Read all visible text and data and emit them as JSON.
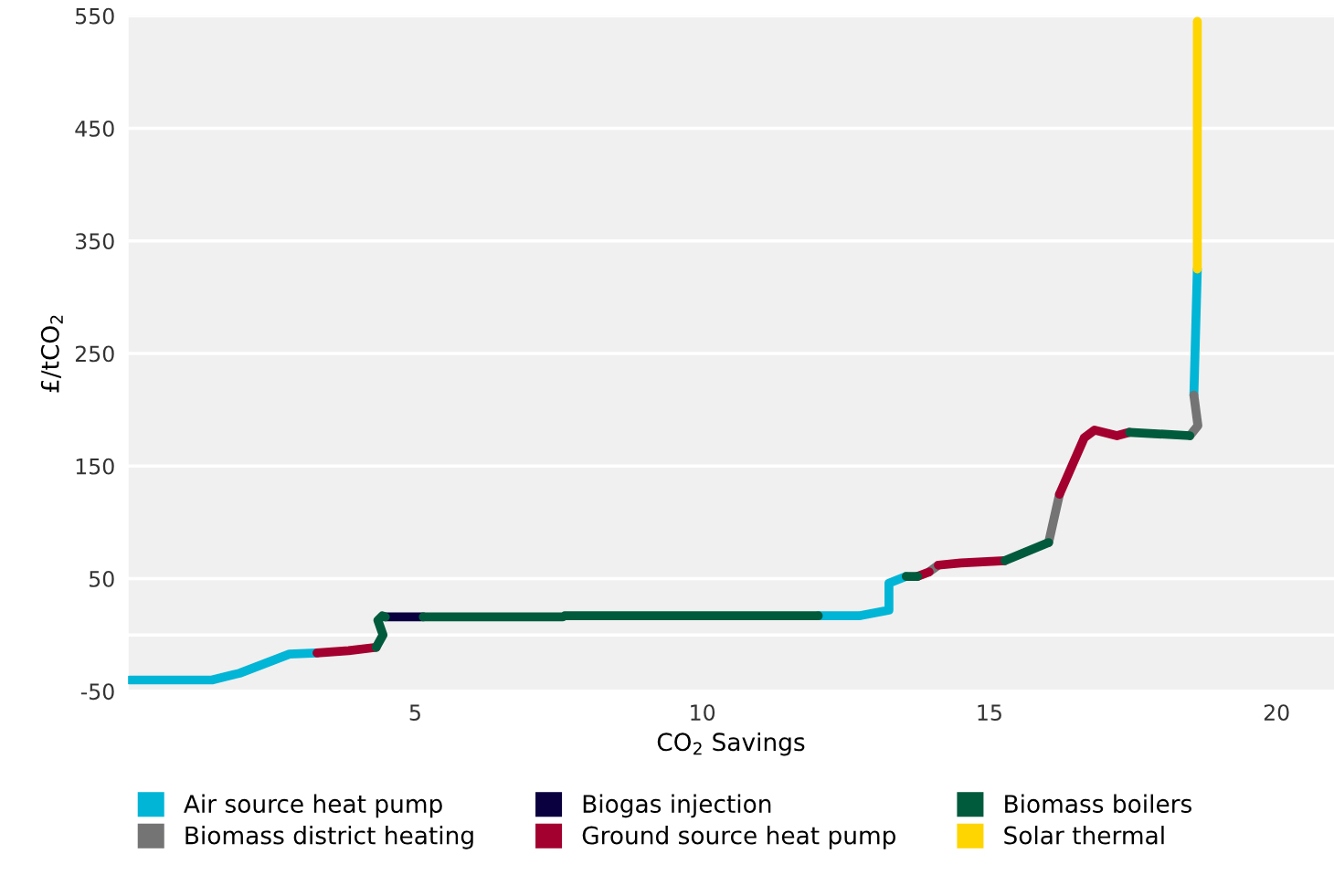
{
  "chart_data": {
    "type": "line",
    "xlabel": "CO$_{2}$ Savings",
    "ylabel": "£/tCO$_{2}$",
    "xlim": [
      0,
      21
    ],
    "xticks": [
      5,
      10,
      15,
      20
    ],
    "ylim": [
      -50,
      550
    ],
    "yticks": [
      -50,
      {
        "value": 0,
        "label": null
      },
      50,
      150,
      250,
      350,
      450,
      550
    ],
    "grid": "y",
    "legend": "bottom",
    "marker": "none",
    "line_style": "solid",
    "series": [
      {
        "name": "Air source heat pump",
        "color": "#00b5d6",
        "x": [
          0.03,
          0.75,
          1.46,
          1.94,
          2.81,
          3.29,
          null,
          12.02,
          12.73,
          13.25,
          13.25,
          13.55,
          null,
          18.56,
          18.62
        ],
        "values": [
          -40,
          -40,
          -40,
          -34,
          -17,
          -16,
          null,
          17,
          17,
          22,
          46,
          52,
          null,
          213,
          325
        ]
      },
      {
        "name": "Biomass district heating",
        "color": "#747474",
        "x": [
          13.95,
          14.11,
          null,
          16.03,
          16.22,
          null,
          18.49,
          18.63,
          18.56
        ],
        "values": [
          56,
          62,
          null,
          82,
          125,
          null,
          177,
          186,
          213
        ]
      },
      {
        "name": "Biogas injection",
        "color": "#0a0040",
        "x": [
          4.48,
          5.14
        ],
        "values": [
          16,
          16
        ]
      },
      {
        "name": "Ground source heat pump",
        "color": "#a4002f",
        "x": [
          3.29,
          3.84,
          4.32,
          null,
          13.75,
          13.95,
          null,
          14.11,
          14.5,
          15.27,
          null,
          16.22,
          16.65,
          16.83,
          17.22,
          17.44
        ],
        "values": [
          -16,
          -14,
          -11,
          null,
          52,
          56,
          null,
          62,
          64,
          66,
          null,
          125,
          175,
          182,
          177,
          180
        ]
      },
      {
        "name": "Biomass boilers",
        "color": "#005a3c",
        "x": [
          4.32,
          4.44,
          4.35,
          4.43,
          4.48,
          null,
          5.14,
          7.57,
          7.6,
          12.02,
          null,
          13.55,
          13.75,
          null,
          15.27,
          16.03,
          null,
          17.44,
          18.49
        ],
        "values": [
          -11,
          0,
          13,
          17,
          16,
          null,
          16,
          16,
          17,
          17,
          null,
          52,
          52,
          null,
          66,
          82,
          null,
          180,
          177
        ]
      },
      {
        "name": "Solar thermal",
        "color": "#ffd500",
        "x": [
          18.62,
          18.62
        ],
        "values": [
          325,
          545
        ]
      }
    ]
  }
}
